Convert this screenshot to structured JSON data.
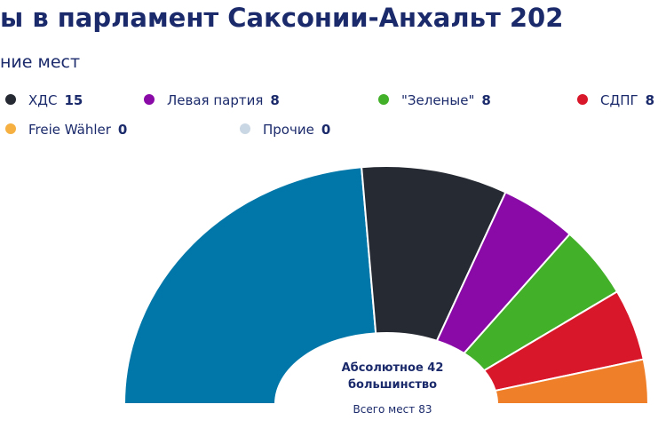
{
  "chart_data": {
    "type": "parliament",
    "title": "ы в парламент Саксонии-Анхальт 202",
    "subtitle": "ние мест",
    "segments": [
      {
        "color": "#0077a8",
        "value": 39
      },
      {
        "name": "ХДС",
        "color": "#262a33",
        "value": 15
      },
      {
        "name": "Левая партия",
        "color": "#8a0aa8",
        "value": 8
      },
      {
        "name": "\"Зеленые\"",
        "color": "#43b02a",
        "value": 8
      },
      {
        "name": "СДПГ",
        "color": "#d9172a",
        "value": 8
      },
      {
        "color": "#f07f2a",
        "value": 5
      },
      {
        "name": "Freie Wähler",
        "color": "#f5b041",
        "value": 0
      },
      {
        "name": "Прочие",
        "color": "#c9d6e3",
        "value": 0
      }
    ],
    "majority": {
      "label": "Абсолютное большинство",
      "value": 42
    },
    "total": {
      "label": "Всего мест",
      "value": 83
    }
  }
}
